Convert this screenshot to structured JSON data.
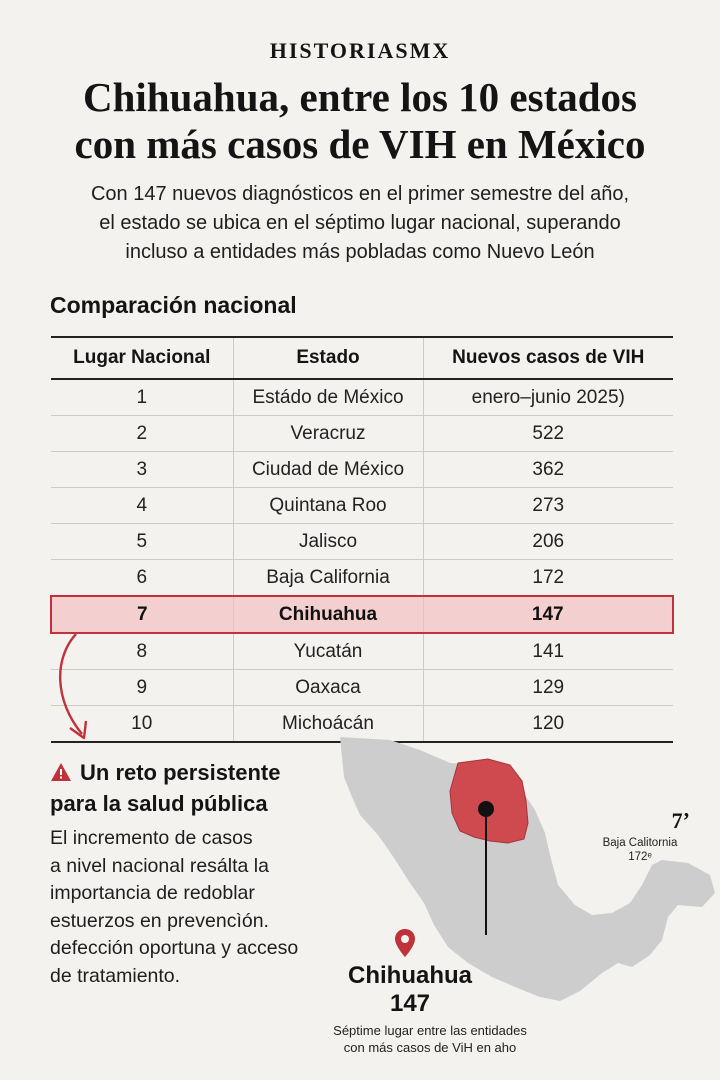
{
  "brand": "HISTORIASMX",
  "headline": {
    "line1": "Chihuahua, entre los 10 estados",
    "line2": "con más casos de VIH en México"
  },
  "deck": {
    "line1": "Con 147 nuevos diagnósticos en el primer semestre del año,",
    "line2": "el estado se ubica en el séptimo lugar nacional, superando",
    "line3": "incluso a entidades más pobladas como Nuevo León"
  },
  "section_title": "Comparación nacional",
  "table": {
    "headers": [
      "Lugar Nacional",
      "Estado",
      "Nuevos casos de VIH"
    ],
    "rows": [
      {
        "rank": "1",
        "state": "Estádo de México",
        "cases": "enero–junio 2025)"
      },
      {
        "rank": "2",
        "state": "Veracruz",
        "cases": "522"
      },
      {
        "rank": "3",
        "state": "Ciudad de México",
        "cases": "362"
      },
      {
        "rank": "4",
        "state": "Quintana Roo",
        "cases": "273"
      },
      {
        "rank": "5",
        "state": "Jalisco",
        "cases": "206"
      },
      {
        "rank": "6",
        "state": "Baja California",
        "cases": "172"
      },
      {
        "rank": "7",
        "state": "Chihuahua",
        "cases": "147"
      },
      {
        "rank": "8",
        "state": "Yucatán",
        "cases": "141"
      },
      {
        "rank": "9",
        "state": "Oaxaca",
        "cases": "129"
      },
      {
        "rank": "10",
        "state": "Michoácán",
        "cases": "120"
      }
    ],
    "highlight_color": "#c0323a"
  },
  "callout": {
    "icon": "warning-icon",
    "title_line1": "Un reto persistente",
    "title_line2": "para la salud pública",
    "body": [
      "El incremento de casos",
      "a nivel nacional resálta la",
      "importancia de redoblar",
      "estuerzos en prevencìón.",
      "defección oportuna y acceso",
      "de tratamiento."
    ]
  },
  "map": {
    "side_rank": "7ʼ",
    "side_name_line1": "Baja Calitornia",
    "side_name_line2": "172ᵉ",
    "feature_name": "Chihuahua",
    "feature_value": "147",
    "caption_line1": "Séptime lugar entre las entidades",
    "caption_line2": "con más casos de ViH en aho",
    "base_color": "#cfcfcf",
    "highlight_color": "#cf4a4f"
  }
}
